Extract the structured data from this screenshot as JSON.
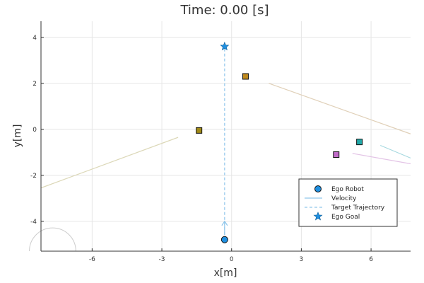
{
  "chart_data": {
    "type": "scatter",
    "title": "Time: 0.00 [s]",
    "xlabel": "x[m]",
    "ylabel": "y[m]",
    "xlim": [
      -8.2,
      7.7
    ],
    "ylim": [
      -5.3,
      4.7
    ],
    "xticks": [
      -6,
      -3,
      0,
      3,
      6
    ],
    "xtick_labels": [
      "-6",
      "-3",
      "0",
      "3",
      "6"
    ],
    "yticks": [
      4,
      2,
      0,
      -2,
      -4
    ],
    "ytick_labels": [
      "4",
      "2",
      "0",
      "-2",
      "-4"
    ],
    "grid": true,
    "legend_position": "bottom-right",
    "legend": [
      {
        "label": "Ego Robot",
        "marker": "circle",
        "color": "#1f8fe0"
      },
      {
        "label": "Velocity",
        "marker": "line",
        "color": "#8fc6ea"
      },
      {
        "label": "Target Trajectory",
        "marker": "dashed-line",
        "color": "#8fc6ea"
      },
      {
        "label": "Ego Goal",
        "marker": "star",
        "color": "#1f8fe0"
      }
    ],
    "ego_robot": {
      "x": -0.3,
      "y": -4.8,
      "color": "#1f8fe0"
    },
    "ego_velocity": {
      "x": [
        -0.3,
        -0.3
      ],
      "y": [
        -4.6,
        -4.0
      ],
      "color": "#8fc6ea"
    },
    "target_trajectory": {
      "x": [
        -0.3,
        -0.3
      ],
      "y": [
        -4.8,
        3.6
      ],
      "color": "#8fc6ea"
    },
    "ego_goal": {
      "x": -0.3,
      "y": 3.6,
      "color": "#1f8fe0"
    },
    "obstacles": [
      {
        "x": 0.6,
        "y": 2.3,
        "color": "#c08a1e"
      },
      {
        "x": -1.4,
        "y": -0.05,
        "color": "#a08a18"
      },
      {
        "x": 5.5,
        "y": -0.55,
        "color": "#22a9a9"
      },
      {
        "x": 4.5,
        "y": -1.1,
        "color": "#c06cc8"
      }
    ],
    "obstacle_trails": [
      {
        "x": [
          1.6,
          7.7
        ],
        "y": [
          2.0,
          -0.2
        ],
        "color": "#e0d0b8"
      },
      {
        "x": [
          -2.3,
          -8.2
        ],
        "y": [
          -0.35,
          -2.55
        ],
        "color": "#dcd8b8"
      },
      {
        "x": [
          6.4,
          7.7
        ],
        "y": [
          -0.7,
          -1.25
        ],
        "color": "#a7d9e0"
      },
      {
        "x": [
          5.2,
          7.7
        ],
        "y": [
          -1.05,
          -1.5
        ],
        "color": "#e3c4e6"
      }
    ],
    "corner_arc": {
      "cx": -7.7,
      "cy": -5.3,
      "r": 0.5,
      "color": "#cccccc"
    }
  }
}
